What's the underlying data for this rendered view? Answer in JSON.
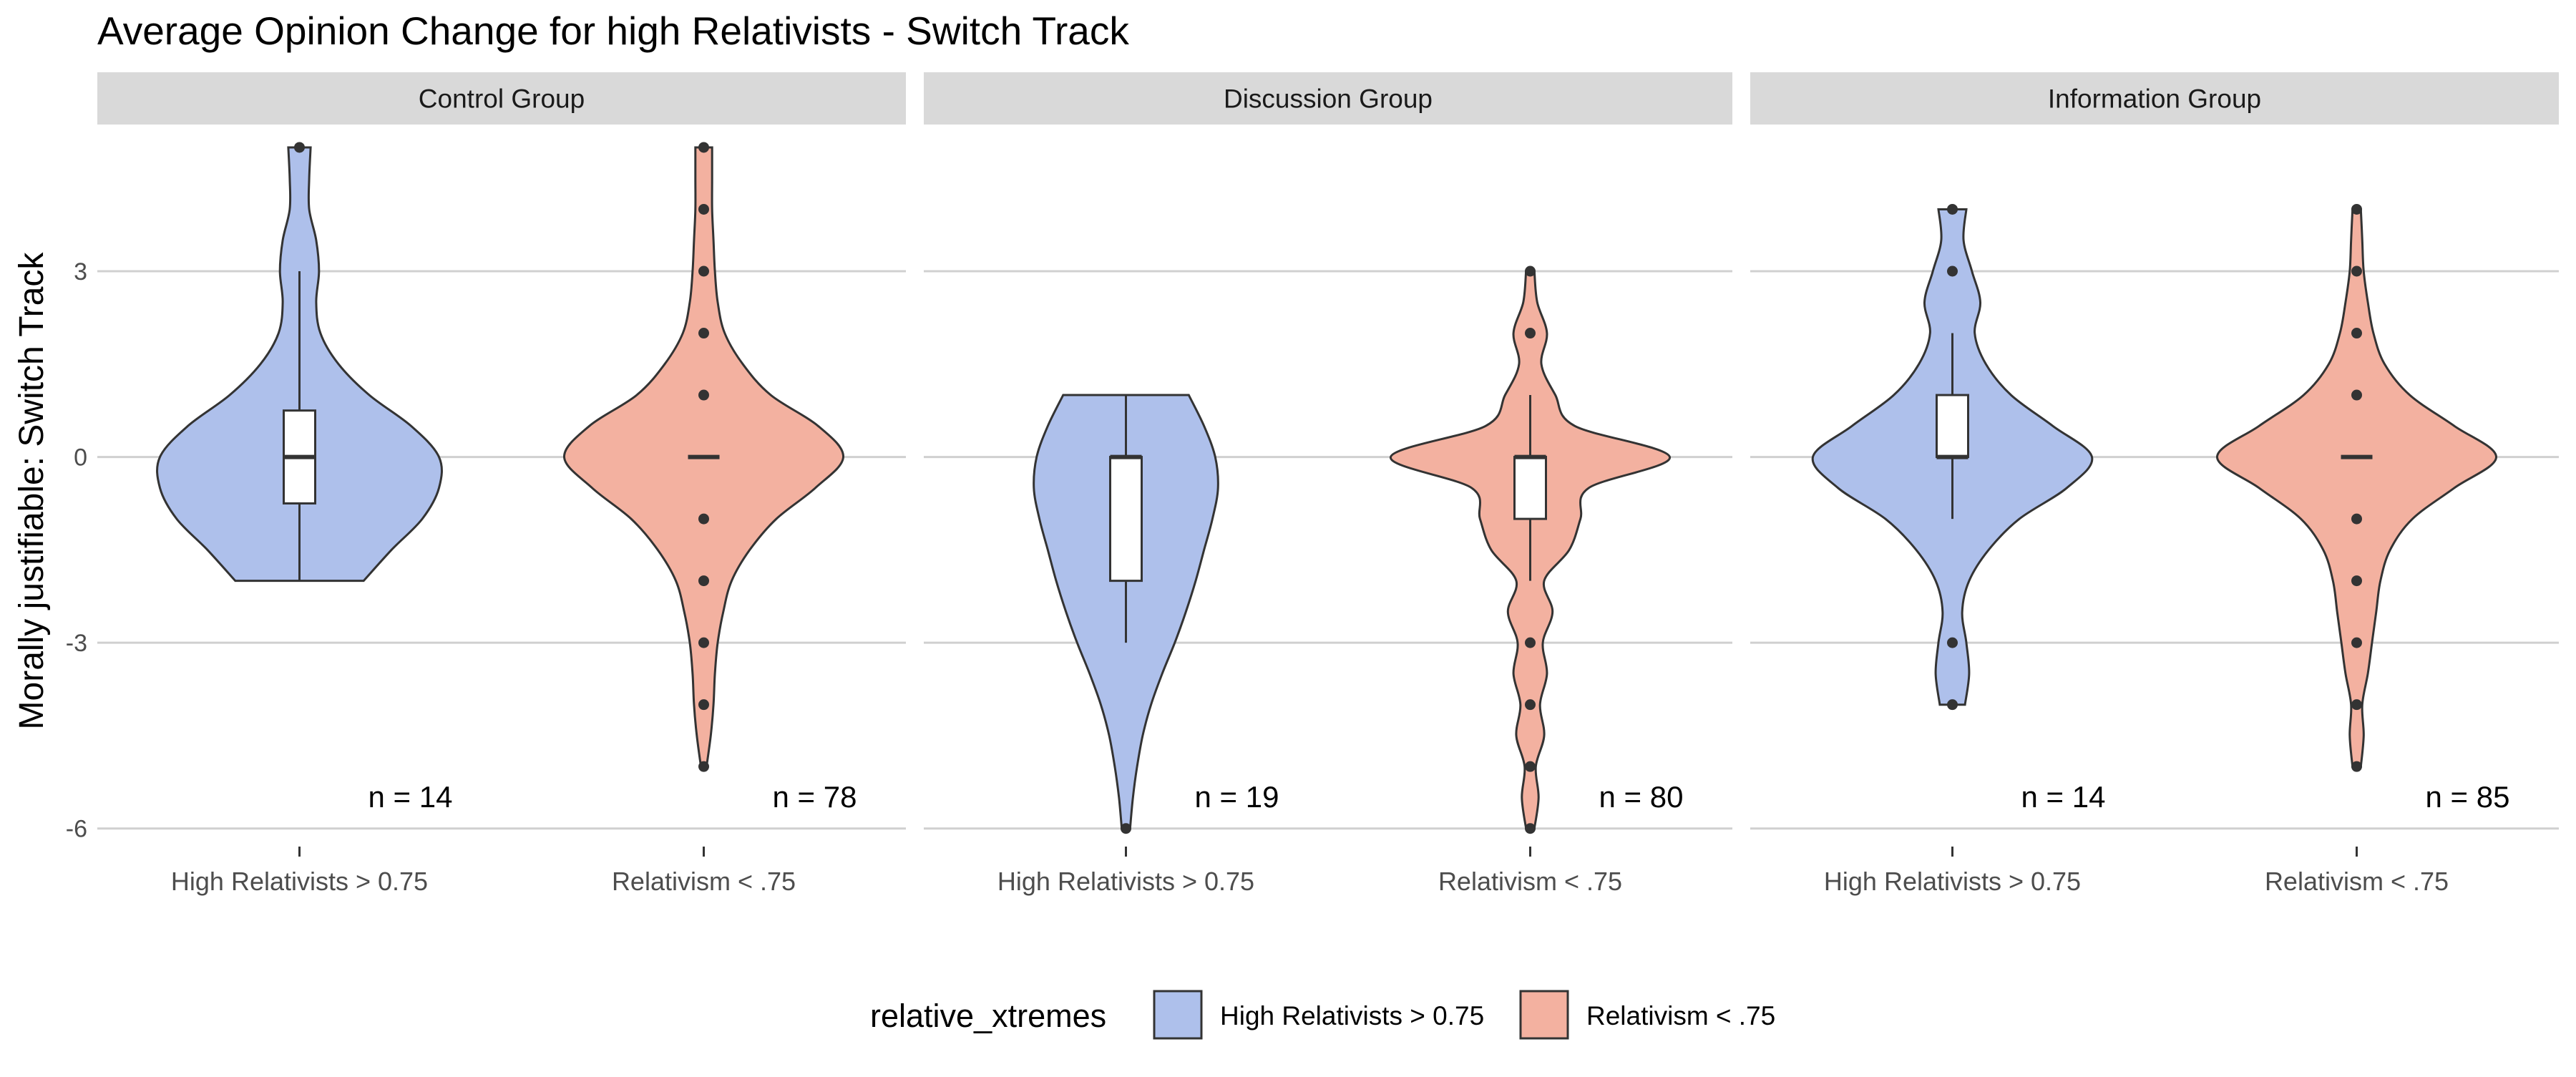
{
  "chart_data": {
    "type": "violin",
    "title": "Average Opinion Change for high Relativists - Switch Track",
    "xlabel": "",
    "ylabel": "Morally justifiable: Switch Track",
    "ylim": [
      -6,
      5
    ],
    "yticks": [
      -6,
      -3,
      0,
      3
    ],
    "ytick_labels": [
      "-6",
      "-3",
      "0",
      "3"
    ],
    "grid": true,
    "legend": {
      "title": "relative_xtremes",
      "position": "bottom",
      "entries": [
        {
          "label": "High Relativists > 0.75",
          "color": "#AEC0EB"
        },
        {
          "label": "Relativism < .75",
          "color": "#F3B1A0"
        }
      ]
    },
    "categories": [
      "High Relativists > 0.75",
      "Relativism < .75"
    ],
    "colors": {
      "high": "#AEC0EB",
      "low": "#F3B1A0",
      "outline": "#333333",
      "strip": "#D9D9D9",
      "grid": "#D0D0D0"
    },
    "panels": [
      {
        "title": "Control Group",
        "groups": [
          {
            "category": "High Relativists > 0.75",
            "color_key": "high",
            "n_label": "n = 14",
            "box": {
              "q1": -0.75,
              "median": 0,
              "q3": 0.75,
              "whisker_low": -2,
              "whisker_high": 3
            },
            "outliers": [
              5
            ],
            "density": [
              [
                -2,
                0.46
              ],
              [
                -1.5,
                0.66
              ],
              [
                -1,
                0.88
              ],
              [
                -0.5,
                1.0
              ],
              [
                0,
                1.0
              ],
              [
                0.5,
                0.8
              ],
              [
                1,
                0.5
              ],
              [
                1.5,
                0.28
              ],
              [
                2,
                0.15
              ],
              [
                2.5,
                0.12
              ],
              [
                3,
                0.14
              ],
              [
                3.5,
                0.12
              ],
              [
                4,
                0.07
              ],
              [
                4.5,
                0.07
              ],
              [
                5,
                0.08
              ]
            ]
          },
          {
            "category": "Relativism < .75",
            "color_key": "low",
            "n_label": "n = 78",
            "box": {
              "q1": 0,
              "median": 0,
              "q3": 0,
              "whisker_low": 0,
              "whisker_high": 0
            },
            "outliers": [
              5,
              4,
              3,
              2,
              1,
              -1,
              -2,
              -3,
              -4,
              -5
            ],
            "density": [
              [
                -5,
                0.02
              ],
              [
                -4.5,
                0.05
              ],
              [
                -4,
                0.07
              ],
              [
                -3.5,
                0.08
              ],
              [
                -3,
                0.1
              ],
              [
                -2.5,
                0.14
              ],
              [
                -2,
                0.2
              ],
              [
                -1.5,
                0.33
              ],
              [
                -1,
                0.52
              ],
              [
                -0.5,
                0.8
              ],
              [
                0,
                1.0
              ],
              [
                0.5,
                0.82
              ],
              [
                1,
                0.48
              ],
              [
                1.5,
                0.28
              ],
              [
                2,
                0.15
              ],
              [
                2.5,
                0.1
              ],
              [
                3,
                0.08
              ],
              [
                3.5,
                0.07
              ],
              [
                4,
                0.06
              ],
              [
                4.5,
                0.06
              ],
              [
                5,
                0.06
              ]
            ]
          }
        ]
      },
      {
        "title": "Discussion Group",
        "groups": [
          {
            "category": "High Relativists > 0.75",
            "color_key": "high",
            "n_label": "n = 19",
            "box": {
              "q1": -2,
              "median": 0,
              "q3": 0,
              "whisker_low": -3,
              "whisker_high": 1
            },
            "outliers": [
              -6
            ],
            "density": [
              [
                -6,
                0.03
              ],
              [
                -5.5,
                0.05
              ],
              [
                -5,
                0.08
              ],
              [
                -4.5,
                0.12
              ],
              [
                -4,
                0.18
              ],
              [
                -3.5,
                0.26
              ],
              [
                -3,
                0.35
              ],
              [
                -2.5,
                0.43
              ],
              [
                -2,
                0.5
              ],
              [
                -1.5,
                0.56
              ],
              [
                -1,
                0.62
              ],
              [
                -0.5,
                0.66
              ],
              [
                0,
                0.64
              ],
              [
                0.5,
                0.56
              ],
              [
                1,
                0.45
              ]
            ]
          },
          {
            "category": "Relativism < .75",
            "color_key": "low",
            "n_label": "n = 80",
            "box": {
              "q1": -1,
              "median": 0,
              "q3": 0,
              "whisker_low": -2,
              "whisker_high": 1
            },
            "outliers": [
              3,
              2,
              -3,
              -4,
              -5,
              -6
            ],
            "density": [
              [
                -6,
                0.03
              ],
              [
                -5.5,
                0.06
              ],
              [
                -5,
                0.04
              ],
              [
                -4.5,
                0.1
              ],
              [
                -4,
                0.07
              ],
              [
                -3.5,
                0.12
              ],
              [
                -3,
                0.09
              ],
              [
                -2.5,
                0.16
              ],
              [
                -2,
                0.1
              ],
              [
                -1.5,
                0.28
              ],
              [
                -1,
                0.36
              ],
              [
                -0.5,
                0.42
              ],
              [
                0,
                1.0
              ],
              [
                0.5,
                0.32
              ],
              [
                1,
                0.18
              ],
              [
                1.5,
                0.08
              ],
              [
                2,
                0.12
              ],
              [
                2.5,
                0.05
              ],
              [
                3,
                0.03
              ]
            ]
          }
        ]
      },
      {
        "title": "Information Group",
        "groups": [
          {
            "category": "High Relativists > 0.75",
            "color_key": "high",
            "n_label": "n = 14",
            "box": {
              "q1": 0,
              "median": 0,
              "q3": 1,
              "whisker_low": -1,
              "whisker_high": 2
            },
            "outliers": [
              4,
              3,
              -3,
              -4
            ],
            "density": [
              [
                -4,
                0.09
              ],
              [
                -3.5,
                0.12
              ],
              [
                -3,
                0.1
              ],
              [
                -2.5,
                0.07
              ],
              [
                -2,
                0.12
              ],
              [
                -1.5,
                0.26
              ],
              [
                -1,
                0.48
              ],
              [
                -0.5,
                0.82
              ],
              [
                0,
                1.0
              ],
              [
                0.5,
                0.72
              ],
              [
                1,
                0.42
              ],
              [
                1.5,
                0.24
              ],
              [
                2,
                0.16
              ],
              [
                2.5,
                0.2
              ],
              [
                3,
                0.14
              ],
              [
                3.5,
                0.08
              ],
              [
                4,
                0.1
              ]
            ]
          },
          {
            "category": "Relativism < .75",
            "color_key": "low",
            "n_label": "n = 85",
            "box": {
              "q1": 0,
              "median": 0,
              "q3": 0,
              "whisker_low": 0,
              "whisker_high": 0
            },
            "outliers": [
              4,
              3,
              2,
              1,
              -1,
              -2,
              -3,
              -4,
              -5
            ],
            "density": [
              [
                -5,
                0.03
              ],
              [
                -4.5,
                0.05
              ],
              [
                -4,
                0.04
              ],
              [
                -3.5,
                0.08
              ],
              [
                -3,
                0.11
              ],
              [
                -2.5,
                0.14
              ],
              [
                -2,
                0.17
              ],
              [
                -1.5,
                0.24
              ],
              [
                -1,
                0.4
              ],
              [
                -0.5,
                0.7
              ],
              [
                0,
                1.0
              ],
              [
                0.5,
                0.7
              ],
              [
                1,
                0.38
              ],
              [
                1.5,
                0.2
              ],
              [
                2,
                0.12
              ],
              [
                2.5,
                0.08
              ],
              [
                3,
                0.05
              ],
              [
                3.5,
                0.04
              ],
              [
                4,
                0.03
              ]
            ]
          }
        ]
      }
    ]
  }
}
